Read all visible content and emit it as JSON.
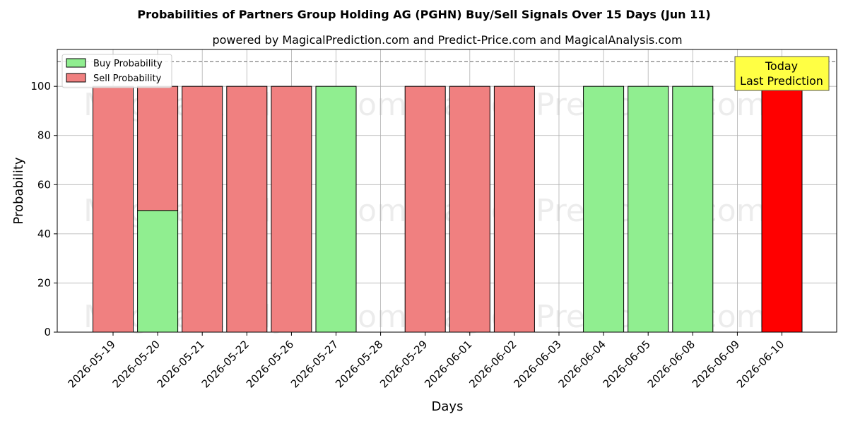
{
  "chart_data": {
    "type": "bar",
    "title": "Probabilities of Partners Group Holding AG (PGHN) Buy/Sell Signals Over 15 Days (Jun 11)",
    "subtitle": "powered by MagicalPrediction.com and Predict-Price.com and MagicalAnalysis.com",
    "xlabel": "Days",
    "ylabel": "Probability",
    "ylim": [
      0,
      115
    ],
    "yticks": [
      0,
      20,
      40,
      60,
      80,
      100
    ],
    "grid": true,
    "legend_position": "top-left",
    "categories": [
      "2026-05-19",
      "2026-05-20",
      "2026-05-21",
      "2026-05-22",
      "2026-05-26",
      "2026-05-27",
      "2026-05-28",
      "2026-05-29",
      "2026-06-01",
      "2026-06-02",
      "2026-06-03",
      "2026-06-04",
      "2026-06-05",
      "2026-06-08",
      "2026-06-09",
      "2026-06-10"
    ],
    "series": [
      {
        "name": "Buy Probability",
        "color": "#90ee90",
        "values": [
          0,
          49.5,
          0,
          0,
          0,
          100,
          0,
          0,
          0,
          0,
          0,
          100,
          100,
          100,
          0,
          0
        ]
      },
      {
        "name": "Sell Probability",
        "color": "#f08080",
        "values": [
          100,
          50.5,
          100,
          100,
          100,
          0,
          0,
          100,
          100,
          100,
          0,
          0,
          0,
          0,
          0,
          100
        ]
      }
    ],
    "highlight": {
      "category": "2026-06-10",
      "color": "#ff0000"
    },
    "reference_line": {
      "value": 110,
      "style": "dashed",
      "color": "#808080"
    },
    "annotation": {
      "lines": [
        "Today",
        "Last Prediction"
      ],
      "background": "#ffff44"
    },
    "watermarks": [
      "MagicalAnalysis.com",
      "MagicalPrediction.com"
    ]
  }
}
